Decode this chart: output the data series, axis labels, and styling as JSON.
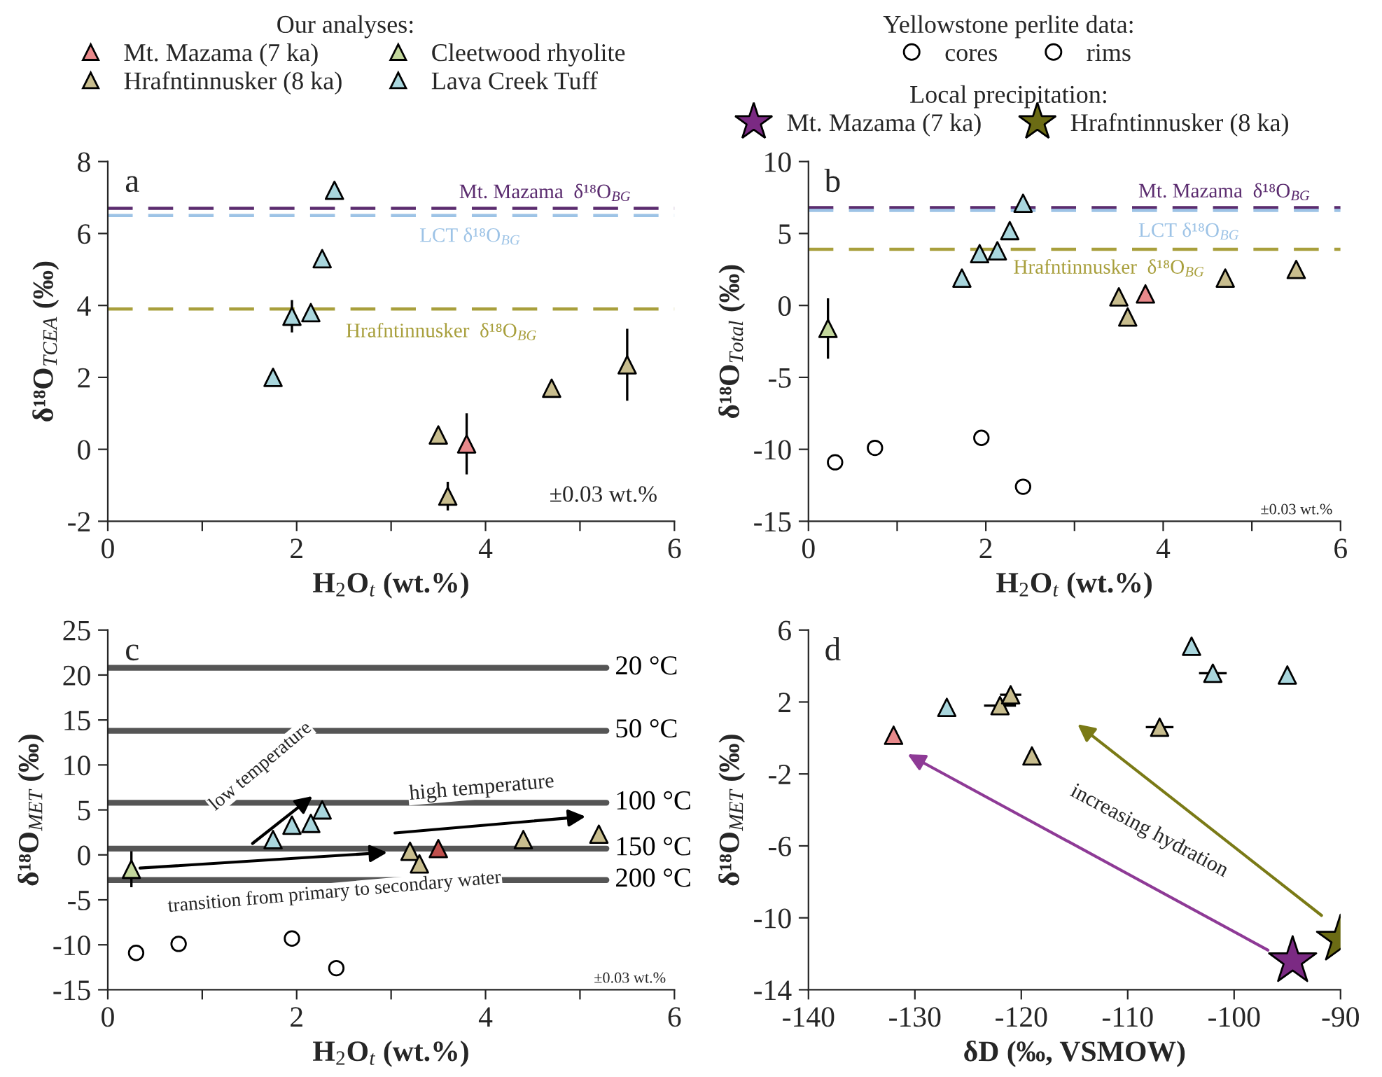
{
  "chart_data": [
    {
      "type": "scatter",
      "title": "a",
      "xlabel": "H$_{2}$O$_{t}$ (wt.%)",
      "ylabel": "δ¹⁸O$_{TCEA}$ (‰)",
      "xlim": [
        0,
        6
      ],
      "xticks": [
        0,
        {
          "value": 1,
          "label": null
        },
        2,
        {
          "value": 3,
          "label": null
        },
        4,
        {
          "value": 5,
          "label": null
        },
        6
      ],
      "ylim": [
        -2,
        8
      ],
      "yticks": [
        -2,
        0,
        2,
        4,
        6,
        8
      ],
      "legend": "top",
      "legend_title": "Our analyses:",
      "grid": false,
      "series": [
        {
          "name": "Mt. Mazama (7 ka)",
          "color": "#e8898b",
          "marker": "triangle",
          "x": [
            3.8
          ],
          "values": [
            0.15
          ],
          "errors": [
            0.85
          ]
        },
        {
          "name": "Hrafntinnusker (8 ka)",
          "color": "#c8bd8e",
          "marker": "triangle",
          "x": [
            3.5,
            3.6,
            4.7,
            5.5
          ],
          "values": [
            0.4,
            -1.3,
            1.7,
            2.35
          ],
          "errors": [
            null,
            0.4,
            null,
            1.0
          ]
        },
        {
          "name": "Cleetwood rhyolite",
          "color": "#c3d79c",
          "marker": "triangle"
        },
        {
          "name": "Lava Creek Tuff",
          "color": "#a9d6dd",
          "marker": "triangle",
          "x": [
            1.75,
            1.95,
            2.15,
            2.27,
            2.4
          ],
          "values": [
            2.0,
            3.7,
            3.8,
            5.3,
            7.2
          ],
          "errors": [
            null,
            0.45,
            null,
            null,
            null
          ]
        }
      ],
      "ref_lines": [
        {
          "axis": "y",
          "value": 6.7,
          "label": "Mt. Mazama  δ¹⁸O$_{BG}$",
          "color": "#5b2c6f",
          "line_style": "dashed"
        },
        {
          "axis": "y",
          "value": 6.5,
          "label": "LCT δ¹⁸O$_{BG}$",
          "color": "#9dc3e6",
          "line_style": "dashed"
        },
        {
          "axis": "y",
          "value": 3.9,
          "label": "Hrafntinnusker  δ¹⁸O$_{BG}$",
          "color": "#a89f3c",
          "line_style": "dashed"
        }
      ],
      "annotations": [
        "±0.03 wt.%"
      ]
    },
    {
      "type": "scatter",
      "title": "b",
      "xlabel": "H$_{2}$O$_{t}$ (wt.%)",
      "ylabel": "δ¹⁸O$_{Total}$ (‰)",
      "xlim": [
        0,
        6
      ],
      "xticks": [
        0,
        {
          "value": 1,
          "label": null
        },
        2,
        {
          "value": 3,
          "label": null
        },
        4,
        {
          "value": 5,
          "label": null
        },
        6
      ],
      "ylim": [
        -15,
        10
      ],
      "yticks": [
        -15,
        -10,
        -5,
        0,
        5,
        10
      ],
      "legend": "top",
      "legend_title": "Yellowstone perlite data:",
      "grid": false,
      "series": [
        {
          "color": "#e8898b",
          "marker": "triangle",
          "x": [
            3.8
          ],
          "values": [
            0.8
          ]
        },
        {
          "color": "#c8bd8e",
          "marker": "triangle",
          "x": [
            3.5,
            3.6,
            4.7,
            5.5
          ],
          "values": [
            0.6,
            -0.8,
            1.9,
            2.5
          ]
        },
        {
          "color": "#c3d79c",
          "marker": "triangle",
          "x": [
            0.22
          ],
          "values": [
            -1.6
          ],
          "errors": [
            2.1
          ]
        },
        {
          "color": "#a9d6dd",
          "marker": "triangle",
          "x": [
            1.73,
            1.93,
            2.13,
            2.27,
            2.42
          ],
          "values": [
            1.9,
            3.6,
            3.8,
            5.2,
            7.1
          ]
        },
        {
          "name": "cores",
          "color": "#ffffff",
          "marker": "circle",
          "x": [
            0.3,
            0.75
          ],
          "values": [
            -10.9,
            -9.9
          ]
        },
        {
          "name": "rims",
          "color": "#ffffff",
          "marker": "circle",
          "x": [
            1.95,
            2.42
          ],
          "values": [
            -9.2,
            -12.6
          ]
        }
      ],
      "ref_lines": [
        {
          "axis": "y",
          "value": 6.8,
          "label": "Mt. Mazama  δ¹⁸O$_{BG}$",
          "color": "#5b2c6f",
          "line_style": "dashed"
        },
        {
          "axis": "y",
          "value": 6.6,
          "label": "LCT δ¹⁸O$_{BG}$",
          "color": "#9dc3e6",
          "line_style": "dashed"
        },
        {
          "axis": "y",
          "value": 3.9,
          "label": "Hrafntinnusker  δ¹⁸O$_{BG}$",
          "color": "#a89f3c",
          "line_style": "dashed"
        }
      ],
      "annotations": [
        "±0.03 wt.%"
      ]
    },
    {
      "type": "scatter",
      "title": "c",
      "xlabel": "H$_{2}$O$_{t}$ (wt.%)",
      "ylabel": "δ¹⁸O$_{MET}$ (‰)",
      "xlim": [
        0,
        6
      ],
      "xticks": [
        0,
        {
          "value": 1,
          "label": null
        },
        2,
        {
          "value": 3,
          "label": null
        },
        4,
        {
          "value": 5,
          "label": null
        },
        6
      ],
      "ylim": [
        -15,
        25
      ],
      "yticks": [
        -15,
        -10,
        -5,
        0,
        5,
        10,
        15,
        20,
        25
      ],
      "grid": false,
      "series": [
        {
          "color": "#c0504d",
          "marker": "triangle",
          "x": [
            3.5
          ],
          "values": [
            0.7
          ]
        },
        {
          "color": "#c8bd8e",
          "marker": "triangle",
          "x": [
            3.2,
            3.3,
            4.4,
            5.2
          ],
          "values": [
            0.4,
            -1.0,
            1.7,
            2.3
          ]
        },
        {
          "color": "#c3d79c",
          "marker": "triangle",
          "x": [
            0.25
          ],
          "values": [
            -1.6
          ],
          "errors": [
            2.0
          ]
        },
        {
          "color": "#a9d6dd",
          "marker": "triangle",
          "x": [
            1.75,
            1.95,
            2.15,
            2.27
          ],
          "values": [
            1.7,
            3.3,
            3.5,
            5.0
          ]
        },
        {
          "color": "#ffffff",
          "marker": "circle",
          "x": [
            0.3,
            0.75
          ],
          "values": [
            -10.9,
            -9.9
          ]
        },
        {
          "color": "#ffffff",
          "marker": "circle",
          "x": [
            1.95,
            2.42
          ],
          "values": [
            -9.3,
            -12.6
          ]
        }
      ],
      "ref_lines": [
        {
          "axis": "y",
          "value": 20.8,
          "label": "20 °C",
          "color": "#555555",
          "line_style": "solid"
        },
        {
          "axis": "y",
          "value": 13.8,
          "label": "50 °C",
          "color": "#555555",
          "line_style": "solid"
        },
        {
          "axis": "y",
          "value": 5.8,
          "label": "100 °C",
          "color": "#555555",
          "line_style": "solid"
        },
        {
          "axis": "y",
          "value": 0.7,
          "label": "150 °C",
          "color": "#555555",
          "line_style": "solid"
        },
        {
          "axis": "y",
          "value": -2.8,
          "label": "200 °C",
          "color": "#555555",
          "line_style": "solid"
        }
      ],
      "annotations": [
        "low temperature",
        "high temperature",
        "transition from primary to secondary water",
        "±0.03 wt.%"
      ]
    },
    {
      "type": "scatter",
      "title": "d",
      "xlabel": "δD (‰, VSMOW)",
      "ylabel": "δ¹⁸O$_{MET}$ (‰)",
      "xlim": [
        -140,
        -90
      ],
      "xticks": [
        -140,
        -130,
        -120,
        -110,
        -100,
        -90
      ],
      "ylim": [
        -14,
        6
      ],
      "yticks": [
        -14,
        -10,
        -6,
        -2,
        2,
        6
      ],
      "legend": "top",
      "legend_title": "Local precipitation:",
      "grid": false,
      "series": [
        {
          "color": "#e8898b",
          "marker": "triangle",
          "x": [
            -132
          ],
          "values": [
            0.15
          ]
        },
        {
          "color": "#c8bd8e",
          "marker": "triangle",
          "x": [
            -122,
            -121,
            -119,
            -107
          ],
          "values": [
            1.8,
            2.4,
            -1.0,
            0.6
          ],
          "xerrors": [
            1.5,
            1.0,
            null,
            1.3
          ]
        },
        {
          "color": "#a9d6dd",
          "marker": "triangle",
          "x": [
            -127,
            -104,
            -102,
            -95
          ],
          "values": [
            1.7,
            5.1,
            3.6,
            3.5
          ],
          "xerrors": [
            null,
            null,
            1.3,
            null
          ]
        },
        {
          "name": "Mt. Mazama (7 ka)",
          "color": "#7b2a83",
          "marker": "star",
          "x": [
            -94.5
          ],
          "values": [
            -12.4
          ]
        },
        {
          "name": "Hrafntinnusker (8 ka)",
          "color": "#6b6b14",
          "marker": "star",
          "x": [
            -90
          ],
          "values": [
            -11.2
          ]
        }
      ],
      "annotations": [
        "increasing hydration"
      ]
    }
  ]
}
